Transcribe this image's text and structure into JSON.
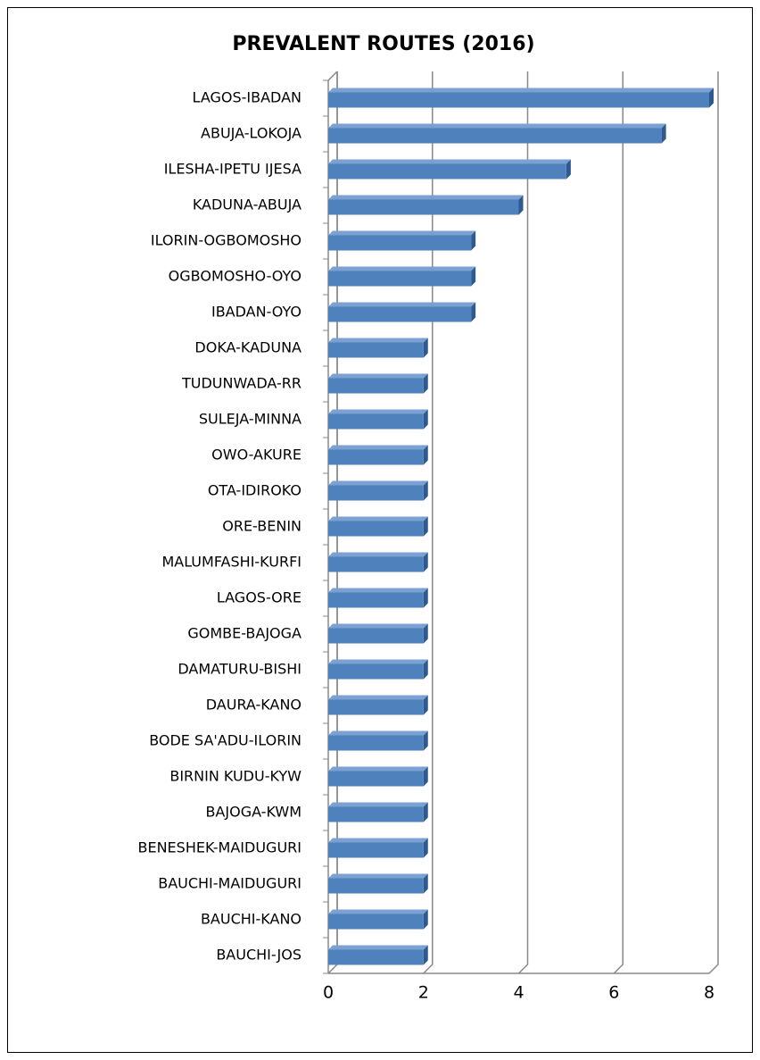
{
  "chart_data": {
    "type": "bar",
    "orientation": "horizontal",
    "title": "PREVALENT ROUTES (2016)",
    "categories": [
      "LAGOS-IBADAN",
      "ABUJA-LOKOJA",
      "ILESHA-IPETU IJESA",
      "KADUNA-ABUJA",
      "ILORIN-OGBOMOSHO",
      "OGBOMOSHO-OYO",
      "IBADAN-OYO",
      "DOKA-KADUNA",
      "TUDUNWADA-RR",
      "SULEJA-MINNA",
      "OWO-AKURE",
      "OTA-IDIROKO",
      "ORE-BENIN",
      "MALUMFASHI-KURFI",
      "LAGOS-ORE",
      "GOMBE-BAJOGA",
      "DAMATURU-BISHI",
      "DAURA-KANO",
      "BODE SA'ADU-ILORIN",
      "BIRNIN KUDU-KYW",
      "BAJOGA-KWM",
      "BENESHEK-MAIDUGURI",
      "BAUCHI-MAIDUGURI",
      "BAUCHI-KANO",
      "BAUCHI-JOS"
    ],
    "values": [
      8,
      7,
      5,
      4,
      3,
      3,
      3,
      2,
      2,
      2,
      2,
      2,
      2,
      2,
      2,
      2,
      2,
      2,
      2,
      2,
      2,
      2,
      2,
      2,
      2
    ],
    "color": "#4f81bd",
    "xlim": [
      0,
      8
    ],
    "xticks": [
      0,
      2,
      4,
      6,
      8
    ],
    "grid": true
  }
}
